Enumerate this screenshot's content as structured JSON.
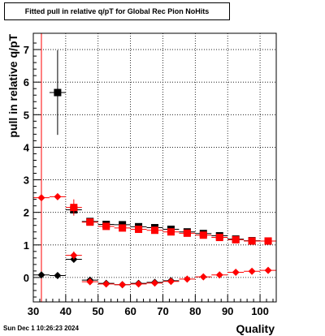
{
  "chart_data": {
    "type": "scatter",
    "title": "Fitted pull in relative q/pT for Global Rec Pion NoHits",
    "xlabel": "Quality",
    "ylabel": "pull in relative q/pT",
    "xlim": [
      30,
      105
    ],
    "ylim": [
      -0.75,
      7.5
    ],
    "x_ticks": [
      "30",
      "40",
      "50",
      "60",
      "70",
      "80",
      "90",
      "100"
    ],
    "y_ticks": [
      "0",
      "1",
      "2",
      "3",
      "4",
      "5",
      "6",
      "7"
    ],
    "grid": true,
    "vertical_line_x": 32.5,
    "series": [
      {
        "marker": "square",
        "color": "#000000",
        "points": [
          {
            "x": 37.5,
            "y": 5.68,
            "err": 1.3
          },
          {
            "x": 42.5,
            "y": 2.08,
            "err": 0.12
          },
          {
            "x": 47.5,
            "y": 1.72,
            "err": 0.05
          },
          {
            "x": 52.5,
            "y": 1.63,
            "err": 0.04
          },
          {
            "x": 57.5,
            "y": 1.62,
            "err": 0.04
          },
          {
            "x": 62.5,
            "y": 1.56,
            "err": 0.04
          },
          {
            "x": 67.5,
            "y": 1.53,
            "err": 0.04
          },
          {
            "x": 72.5,
            "y": 1.48,
            "err": 0.04
          },
          {
            "x": 77.5,
            "y": 1.4,
            "err": 0.04
          },
          {
            "x": 82.5,
            "y": 1.35,
            "err": 0.04
          },
          {
            "x": 87.5,
            "y": 1.28,
            "err": 0.04
          },
          {
            "x": 92.5,
            "y": 1.18,
            "err": 0.04
          },
          {
            "x": 97.5,
            "y": 1.13,
            "err": 0.04
          },
          {
            "x": 102.5,
            "y": 1.12,
            "err": 0.04
          }
        ]
      },
      {
        "marker": "square",
        "color": "#ff0000",
        "points": [
          {
            "x": 42.5,
            "y": 2.15,
            "err": 0.25
          },
          {
            "x": 47.5,
            "y": 1.7,
            "err": 0.05
          },
          {
            "x": 52.5,
            "y": 1.57,
            "err": 0.05
          },
          {
            "x": 57.5,
            "y": 1.52,
            "err": 0.05
          },
          {
            "x": 62.5,
            "y": 1.48,
            "err": 0.05
          },
          {
            "x": 67.5,
            "y": 1.45,
            "err": 0.05
          },
          {
            "x": 72.5,
            "y": 1.4,
            "err": 0.05
          },
          {
            "x": 77.5,
            "y": 1.36,
            "err": 0.05
          },
          {
            "x": 82.5,
            "y": 1.3,
            "err": 0.05
          },
          {
            "x": 87.5,
            "y": 1.23,
            "err": 0.05
          },
          {
            "x": 92.5,
            "y": 1.16,
            "err": 0.05
          },
          {
            "x": 97.5,
            "y": 1.12,
            "err": 0.05
          },
          {
            "x": 102.5,
            "y": 1.12,
            "err": 0.05
          }
        ]
      },
      {
        "marker": "diamond",
        "color": "#000000",
        "points": [
          {
            "x": 32.5,
            "y": 0.08,
            "err": 0.05
          },
          {
            "x": 37.5,
            "y": 0.06,
            "err": 0.05
          },
          {
            "x": 42.5,
            "y": 0.56,
            "err": 0.1
          },
          {
            "x": 47.5,
            "y": -0.08,
            "err": 0.05
          },
          {
            "x": 52.5,
            "y": -0.18,
            "err": 0.03
          },
          {
            "x": 57.5,
            "y": -0.22,
            "err": 0.03
          },
          {
            "x": 62.5,
            "y": -0.18,
            "err": 0.03
          },
          {
            "x": 67.5,
            "y": -0.15,
            "err": 0.03
          },
          {
            "x": 72.5,
            "y": -0.1,
            "err": 0.03
          }
        ]
      },
      {
        "marker": "diamond",
        "color": "#ff0000",
        "points": [
          {
            "x": 32.5,
            "y": 2.45,
            "err": 0.05
          },
          {
            "x": 37.5,
            "y": 2.48,
            "err": 0.05
          },
          {
            "x": 42.5,
            "y": 0.68,
            "err": 0.12
          },
          {
            "x": 47.5,
            "y": -0.13,
            "err": 0.05
          },
          {
            "x": 52.5,
            "y": -0.2,
            "err": 0.03
          },
          {
            "x": 57.5,
            "y": -0.22,
            "err": 0.03
          },
          {
            "x": 62.5,
            "y": -0.2,
            "err": 0.03
          },
          {
            "x": 67.5,
            "y": -0.17,
            "err": 0.03
          },
          {
            "x": 72.5,
            "y": -0.12,
            "err": 0.03
          },
          {
            "x": 77.5,
            "y": -0.05,
            "err": 0.03
          },
          {
            "x": 82.5,
            "y": 0.02,
            "err": 0.03
          },
          {
            "x": 87.5,
            "y": 0.08,
            "err": 0.03
          },
          {
            "x": 92.5,
            "y": 0.16,
            "err": 0.03
          },
          {
            "x": 97.5,
            "y": 0.19,
            "err": 0.03
          },
          {
            "x": 102.5,
            "y": 0.22,
            "err": 0.03
          }
        ]
      }
    ]
  },
  "timestamp": "Sun Dec  1 10:26:23 2024"
}
